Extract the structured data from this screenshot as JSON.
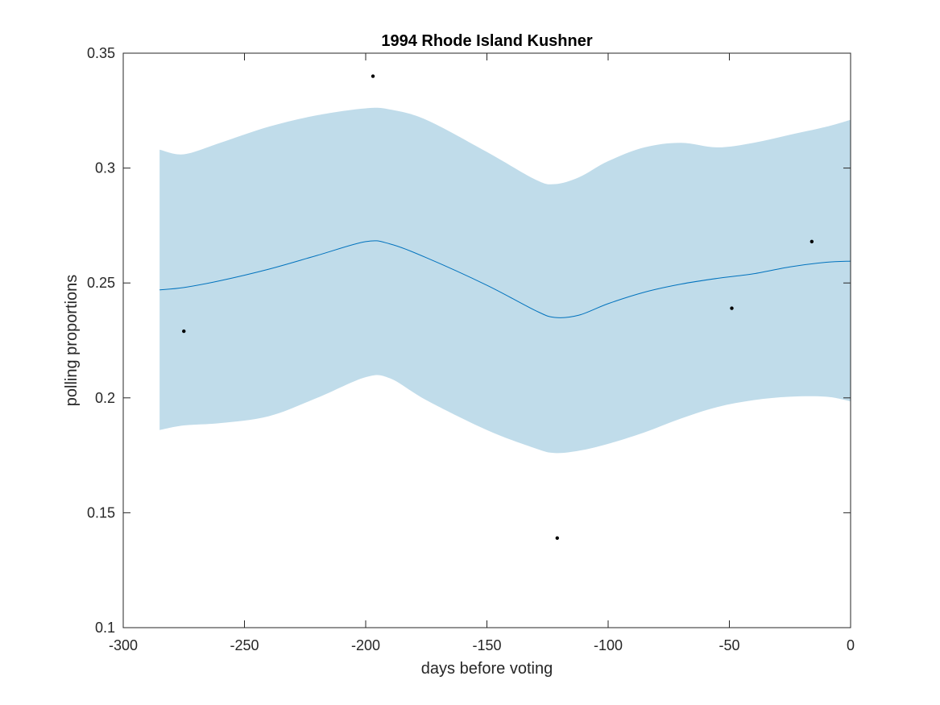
{
  "chart_data": {
    "type": "line",
    "title": "1994 Rhode Island Kushner",
    "xlabel": "days before voting",
    "ylabel": "polling proportions",
    "xlim": [
      -300,
      0
    ],
    "ylim": [
      0.1,
      0.35
    ],
    "xticks": [
      -300,
      -250,
      -200,
      -150,
      -100,
      -50,
      0
    ],
    "yticks": [
      0.1,
      0.15,
      0.2,
      0.25,
      0.3,
      0.35
    ],
    "x_tick_labels": [
      "-300",
      "-250",
      "-200",
      "-150",
      "-100",
      "-50",
      "0"
    ],
    "y_tick_labels": [
      "0.1",
      "0.15",
      "0.2",
      "0.25",
      "0.3",
      "0.35"
    ],
    "grid": false,
    "colors": {
      "band": "#c0dcea",
      "line": "#0072bd",
      "points": "#000000",
      "axes": "#262626"
    },
    "trend": {
      "x": [
        -285,
        -275,
        -260,
        -240,
        -220,
        -200,
        -190,
        -175,
        -150,
        -130,
        -122,
        -112,
        -100,
        -85,
        -70,
        -55,
        -40,
        -25,
        -10,
        0
      ],
      "mean": [
        0.247,
        0.248,
        0.251,
        0.256,
        0.262,
        0.268,
        0.267,
        0.261,
        0.249,
        0.238,
        0.235,
        0.236,
        0.241,
        0.246,
        0.2495,
        0.252,
        0.254,
        0.257,
        0.259,
        0.2595
      ],
      "upper": [
        0.308,
        0.306,
        0.311,
        0.318,
        0.323,
        0.326,
        0.3255,
        0.321,
        0.307,
        0.295,
        0.293,
        0.296,
        0.303,
        0.309,
        0.311,
        0.309,
        0.311,
        0.3145,
        0.318,
        0.321
      ],
      "lower": [
        0.186,
        0.188,
        0.189,
        0.192,
        0.2,
        0.209,
        0.2085,
        0.199,
        0.186,
        0.178,
        0.176,
        0.177,
        0.18,
        0.185,
        0.191,
        0.196,
        0.199,
        0.2005,
        0.2005,
        0.1985
      ]
    },
    "points": [
      {
        "x": -275,
        "y": 0.229
      },
      {
        "x": -197,
        "y": 0.34
      },
      {
        "x": -121,
        "y": 0.139
      },
      {
        "x": -49,
        "y": 0.239
      },
      {
        "x": -16,
        "y": 0.268
      }
    ]
  }
}
